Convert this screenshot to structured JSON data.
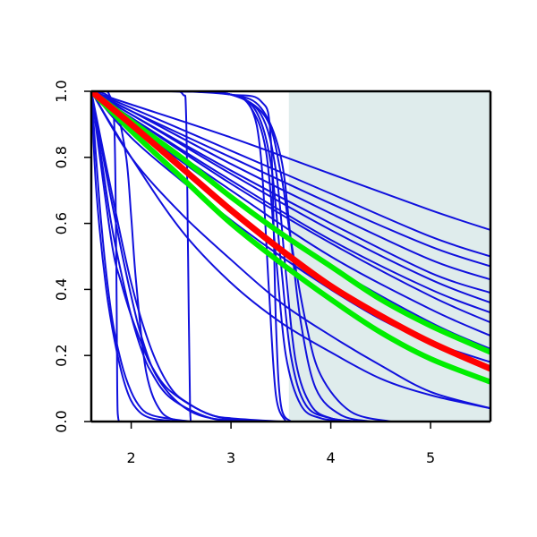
{
  "chart_data": {
    "type": "line",
    "title": "",
    "xlabel": "",
    "ylabel": "",
    "xlim": [
      1.6,
      5.6
    ],
    "ylim": [
      0.0,
      1.0
    ],
    "x_ticks": [
      {
        "value": 2,
        "label": "2"
      },
      {
        "value": 3,
        "label": "3"
      },
      {
        "value": 4,
        "label": "4"
      },
      {
        "value": 5,
        "label": "5"
      }
    ],
    "y_ticks": [
      {
        "value": 0.0,
        "label": "0.0"
      },
      {
        "value": 0.2,
        "label": "0.2"
      },
      {
        "value": 0.4,
        "label": "0.4"
      },
      {
        "value": 0.6,
        "label": "0.6"
      },
      {
        "value": 0.8,
        "label": "0.8"
      },
      {
        "value": 1.0,
        "label": "1.0"
      }
    ],
    "grid": false,
    "legend": "none",
    "shaded_region": {
      "x_from": 3.58,
      "x_to": 5.6,
      "color": "#dfecec"
    },
    "colors": {
      "draws": "#1010dd",
      "mean": "#ff0000",
      "band": "#00ee00"
    },
    "series": [
      {
        "role": "mean",
        "x": [
          1.6,
          2.0,
          2.5,
          3.0,
          3.5,
          4.0,
          4.5,
          5.0,
          5.6
        ],
        "y": [
          1.0,
          0.9,
          0.77,
          0.64,
          0.52,
          0.41,
          0.32,
          0.24,
          0.16
        ]
      },
      {
        "role": "band",
        "x": [
          1.6,
          2.0,
          2.5,
          3.0,
          3.5,
          4.0,
          4.5,
          5.0,
          5.6
        ],
        "y": [
          1.0,
          0.91,
          0.8,
          0.68,
          0.57,
          0.47,
          0.37,
          0.29,
          0.21
        ]
      },
      {
        "role": "band",
        "x": [
          1.6,
          2.0,
          2.5,
          3.0,
          3.5,
          4.0,
          4.5,
          5.0,
          5.6
        ],
        "y": [
          1.0,
          0.88,
          0.74,
          0.6,
          0.48,
          0.37,
          0.27,
          0.19,
          0.12
        ]
      },
      {
        "role": "draw",
        "x": [
          1.6,
          2.0,
          3.0,
          4.0,
          5.0,
          5.6
        ],
        "y": [
          1.0,
          0.96,
          0.86,
          0.75,
          0.64,
          0.58
        ]
      },
      {
        "role": "draw",
        "x": [
          1.6,
          2.0,
          3.0,
          4.0,
          5.0,
          5.6
        ],
        "y": [
          1.0,
          0.95,
          0.82,
          0.69,
          0.56,
          0.5
        ]
      },
      {
        "role": "draw",
        "x": [
          1.6,
          2.0,
          3.0,
          4.0,
          5.0,
          5.6
        ],
        "y": [
          1.0,
          0.94,
          0.8,
          0.66,
          0.53,
          0.47
        ]
      },
      {
        "role": "draw",
        "x": [
          1.6,
          2.0,
          3.0,
          4.0,
          5.0,
          5.6
        ],
        "y": [
          1.0,
          0.94,
          0.78,
          0.63,
          0.49,
          0.43
        ]
      },
      {
        "role": "draw",
        "x": [
          1.6,
          2.0,
          3.0,
          4.0,
          5.0,
          5.6
        ],
        "y": [
          1.0,
          0.93,
          0.76,
          0.6,
          0.45,
          0.39
        ]
      },
      {
        "role": "draw",
        "x": [
          1.6,
          2.0,
          3.0,
          4.0,
          5.0,
          5.6
        ],
        "y": [
          1.0,
          0.93,
          0.75,
          0.58,
          0.43,
          0.36
        ]
      },
      {
        "role": "draw",
        "x": [
          1.6,
          2.0,
          3.0,
          4.0,
          5.0,
          5.6
        ],
        "y": [
          1.0,
          0.92,
          0.73,
          0.55,
          0.4,
          0.33
        ]
      },
      {
        "role": "draw",
        "x": [
          1.6,
          2.0,
          3.0,
          4.0,
          5.0,
          5.6
        ],
        "y": [
          1.0,
          0.92,
          0.72,
          0.54,
          0.38,
          0.3
        ]
      },
      {
        "role": "draw",
        "x": [
          1.6,
          2.0,
          3.0,
          4.0,
          5.0,
          5.6
        ],
        "y": [
          1.0,
          0.91,
          0.7,
          0.5,
          0.34,
          0.26
        ]
      },
      {
        "role": "draw",
        "x": [
          1.6,
          2.0,
          3.0,
          4.0,
          5.0,
          5.6
        ],
        "y": [
          1.0,
          0.9,
          0.68,
          0.47,
          0.3,
          0.22
        ]
      },
      {
        "role": "draw",
        "x": [
          1.6,
          2.0,
          2.5,
          3.0,
          3.5,
          4.0,
          4.5,
          5.0,
          5.6
        ],
        "y": [
          1.0,
          0.86,
          0.73,
          0.61,
          0.5,
          0.4,
          0.31,
          0.24,
          0.18
        ]
      },
      {
        "role": "draw",
        "x": [
          1.6,
          2.0,
          2.5,
          3.0,
          3.5,
          4.0,
          4.5,
          5.0,
          5.6
        ],
        "y": [
          1.0,
          0.8,
          0.63,
          0.49,
          0.36,
          0.26,
          0.17,
          0.09,
          0.04
        ]
      },
      {
        "role": "draw",
        "x": [
          1.6,
          2.0,
          2.5,
          3.0,
          3.2,
          3.35,
          3.45,
          3.55,
          3.7,
          3.9,
          4.2
        ],
        "y": [
          1.0,
          1.0,
          1.0,
          0.99,
          0.95,
          0.82,
          0.5,
          0.2,
          0.05,
          0.01,
          0.0
        ]
      },
      {
        "role": "draw",
        "x": [
          1.6,
          2.0,
          2.5,
          3.0,
          3.25,
          3.4,
          3.5,
          3.6,
          3.75,
          4.0,
          4.3
        ],
        "y": [
          1.0,
          1.0,
          1.0,
          0.99,
          0.94,
          0.78,
          0.48,
          0.2,
          0.05,
          0.01,
          0.0
        ]
      },
      {
        "role": "draw",
        "x": [
          1.6,
          2.0,
          2.5,
          3.0,
          3.3,
          3.45,
          3.55,
          3.65,
          3.8,
          4.0,
          4.3
        ],
        "y": [
          1.0,
          1.0,
          1.0,
          0.99,
          0.93,
          0.76,
          0.45,
          0.18,
          0.05,
          0.01,
          0.0
        ]
      },
      {
        "role": "draw",
        "x": [
          1.6,
          2.0,
          2.5,
          3.0,
          3.3,
          3.5,
          3.6,
          3.7,
          3.85,
          4.1,
          4.4
        ],
        "y": [
          1.0,
          1.0,
          1.0,
          0.99,
          0.95,
          0.8,
          0.55,
          0.3,
          0.1,
          0.02,
          0.0
        ]
      },
      {
        "role": "draw",
        "x": [
          1.6,
          2.0,
          2.5,
          3.0,
          3.35,
          3.5,
          3.6,
          3.75,
          3.9,
          4.2,
          4.6
        ],
        "y": [
          1.0,
          1.0,
          1.0,
          0.99,
          0.92,
          0.75,
          0.55,
          0.3,
          0.14,
          0.03,
          0.0
        ]
      },
      {
        "role": "draw",
        "x": [
          1.6,
          2.0,
          2.5,
          3.0,
          3.3,
          3.4,
          3.45,
          3.5,
          3.6
        ],
        "y": [
          1.0,
          1.0,
          1.0,
          0.99,
          0.97,
          0.85,
          0.3,
          0.05,
          0.0
        ]
      },
      {
        "role": "draw",
        "x": [
          1.6,
          2.0,
          2.5,
          3.0,
          3.2,
          3.3,
          3.38,
          3.45,
          3.55
        ],
        "y": [
          1.0,
          1.0,
          1.0,
          0.99,
          0.95,
          0.8,
          0.4,
          0.08,
          0.0
        ]
      },
      {
        "role": "draw",
        "x": [
          1.6,
          2.0,
          2.4,
          2.52,
          2.55,
          2.57,
          2.59,
          2.62
        ],
        "y": [
          1.0,
          1.0,
          1.0,
          0.99,
          0.93,
          0.5,
          0.04,
          0.0
        ]
      },
      {
        "role": "draw",
        "x": [
          1.6,
          1.7,
          1.78,
          1.83,
          1.85,
          1.86,
          1.87,
          1.9
        ],
        "y": [
          1.0,
          1.0,
          0.99,
          0.9,
          0.5,
          0.1,
          0.01,
          0.0
        ]
      },
      {
        "role": "draw",
        "x": [
          1.6,
          1.75,
          1.85,
          1.95,
          2.0,
          2.05,
          2.15,
          2.3,
          2.5
        ],
        "y": [
          1.0,
          0.99,
          0.95,
          0.8,
          0.62,
          0.42,
          0.15,
          0.03,
          0.0
        ]
      },
      {
        "role": "draw",
        "x": [
          1.6,
          1.7,
          1.8,
          1.9,
          2.0,
          2.1,
          2.2,
          2.4,
          2.8,
          3.2
        ],
        "y": [
          1.0,
          0.8,
          0.6,
          0.45,
          0.32,
          0.22,
          0.15,
          0.07,
          0.01,
          0.0
        ]
      },
      {
        "role": "draw",
        "x": [
          1.6,
          1.8,
          1.9,
          2.0,
          2.1,
          2.2,
          2.4,
          2.8,
          3.2
        ],
        "y": [
          1.0,
          0.55,
          0.42,
          0.32,
          0.24,
          0.17,
          0.09,
          0.02,
          0.0
        ]
      },
      {
        "role": "draw",
        "x": [
          1.6,
          1.8,
          2.0,
          2.2,
          2.4,
          2.6,
          2.8,
          3.0,
          3.5
        ],
        "y": [
          1.0,
          0.7,
          0.42,
          0.22,
          0.1,
          0.05,
          0.02,
          0.01,
          0.0
        ]
      },
      {
        "role": "draw",
        "x": [
          1.6,
          1.75,
          1.9,
          2.0,
          2.1,
          2.25,
          2.5,
          2.8,
          3.3
        ],
        "y": [
          1.0,
          0.75,
          0.52,
          0.38,
          0.26,
          0.14,
          0.05,
          0.01,
          0.0
        ]
      },
      {
        "role": "draw",
        "x": [
          1.6,
          1.7,
          1.8,
          1.9,
          2.0,
          2.1,
          2.2,
          2.35,
          2.6
        ],
        "y": [
          1.0,
          0.6,
          0.33,
          0.18,
          0.09,
          0.04,
          0.02,
          0.01,
          0.0
        ]
      },
      {
        "role": "draw",
        "x": [
          1.6,
          1.65,
          1.75,
          1.85,
          1.95,
          2.05,
          2.2,
          2.5
        ],
        "y": [
          1.0,
          0.7,
          0.4,
          0.22,
          0.1,
          0.04,
          0.01,
          0.0
        ]
      },
      {
        "role": "draw",
        "x": [
          1.6,
          2.0,
          2.5,
          3.0,
          3.5,
          4.0,
          4.5,
          5.0,
          5.6
        ],
        "y": [
          1.0,
          0.8,
          0.58,
          0.42,
          0.3,
          0.21,
          0.13,
          0.08,
          0.04
        ]
      }
    ]
  }
}
